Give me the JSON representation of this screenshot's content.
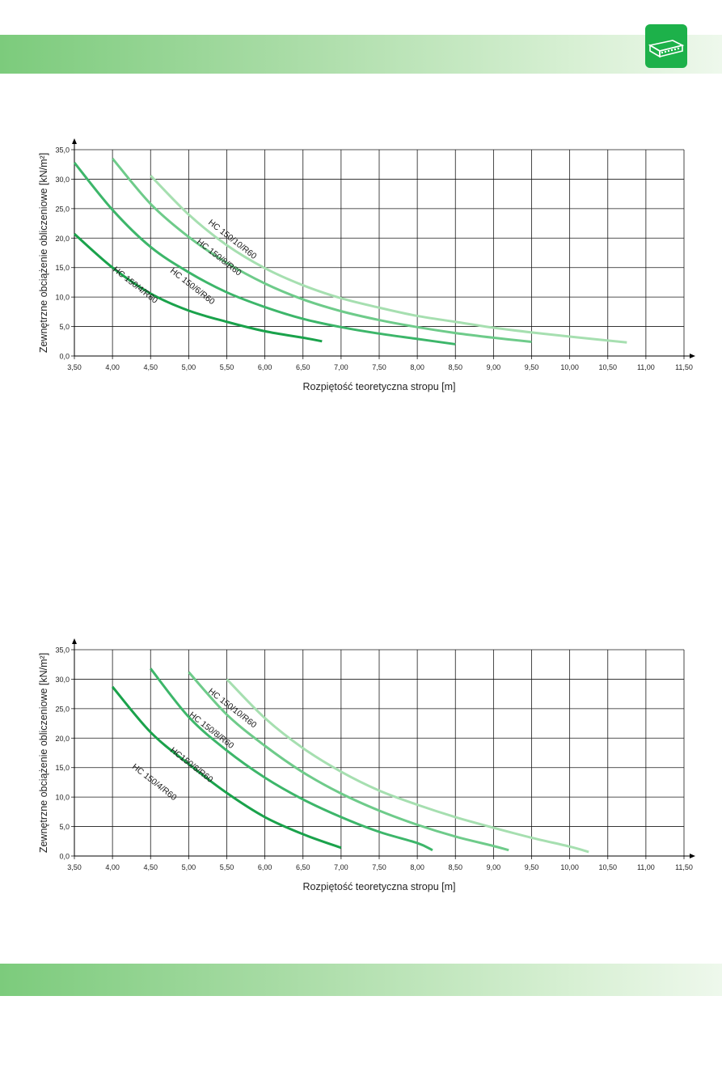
{
  "colors": {
    "band_start": "#7ccb7c",
    "band_end": "#eef8ec",
    "logo": "#1db14a",
    "series": [
      "#1aa24b",
      "#3db66a",
      "#6ecb8a",
      "#a6dfb0"
    ]
  },
  "icons": {
    "logo": "hollow-core-slab-icon"
  },
  "chart_data": [
    {
      "type": "line",
      "ylabel": "Zewnętrzne obciążenie obliczeniowe [kN/m²]",
      "xlabel": "Rozpiętość teoretyczna stropu [m]",
      "xlim": [
        3.5,
        11.5
      ],
      "ylim": [
        0,
        35
      ],
      "grid": true,
      "x_ticks": [
        "3,50",
        "4,00",
        "4,50",
        "5,00",
        "5,50",
        "6,00",
        "6,50",
        "7,00",
        "7,50",
        "8,00",
        "8,50",
        "9,00",
        "9,50",
        "10,00",
        "10,50",
        "11,00",
        "11,50"
      ],
      "y_ticks": [
        "0,0",
        "5,0",
        "10,0",
        "15,0",
        "20,0",
        "25,0",
        "30,0",
        "35,0"
      ],
      "series": [
        {
          "name": "HC 150/4/R60",
          "x": [
            3.5,
            4.0,
            4.5,
            5.0,
            5.5,
            6.0,
            6.5,
            6.75
          ],
          "y": [
            20.7,
            15.0,
            10.6,
            7.7,
            5.8,
            4.2,
            3.1,
            2.5
          ]
        },
        {
          "name": "HC 150/6/R60",
          "x": [
            3.5,
            4.0,
            4.5,
            5.0,
            5.5,
            6.0,
            6.5,
            7.0,
            7.5,
            8.0,
            8.5
          ],
          "y": [
            32.8,
            24.8,
            18.5,
            14.2,
            10.8,
            8.3,
            6.3,
            4.9,
            3.8,
            2.9,
            2.0
          ]
        },
        {
          "name": "HC 150/8/R60",
          "x": [
            4.0,
            4.5,
            5.0,
            5.5,
            6.0,
            6.5,
            7.0,
            7.5,
            8.0,
            8.5,
            9.0,
            9.5
          ],
          "y": [
            33.5,
            25.8,
            20.2,
            15.8,
            12.3,
            9.6,
            7.6,
            6.1,
            4.9,
            3.9,
            3.1,
            2.4
          ]
        },
        {
          "name": "HC 150/10/R60",
          "x": [
            4.5,
            5.0,
            5.5,
            6.0,
            6.5,
            7.0,
            7.5,
            8.0,
            8.5,
            9.0,
            9.5,
            10.0,
            10.75
          ],
          "y": [
            30.6,
            24.0,
            18.8,
            14.9,
            12.0,
            9.8,
            8.2,
            6.8,
            5.8,
            4.8,
            4.0,
            3.3,
            2.3
          ]
        }
      ]
    },
    {
      "type": "line",
      "ylabel": "Zewnętrzne obciążenie obliczeniowe [kN/m²]",
      "xlabel": "Rozpiętość teoretyczna stropu [m]",
      "xlim": [
        3.5,
        11.5
      ],
      "ylim": [
        0,
        35
      ],
      "grid": true,
      "x_ticks": [
        "3,50",
        "4,00",
        "4,50",
        "5,00",
        "5,50",
        "6,00",
        "6,50",
        "7,00",
        "7,50",
        "8,00",
        "8,50",
        "9,00",
        "9,50",
        "10,00",
        "10,50",
        "11,00",
        "11,50"
      ],
      "y_ticks": [
        "0,0",
        "5,0",
        "10,0",
        "15,0",
        "20,0",
        "25,0",
        "30,0",
        "35,0"
      ],
      "series": [
        {
          "name": "HC 150/4/R60",
          "x": [
            4.0,
            4.5,
            5.0,
            5.5,
            6.0,
            6.5,
            7.0
          ],
          "y": [
            28.7,
            21.0,
            15.6,
            10.7,
            6.6,
            3.7,
            1.4
          ]
        },
        {
          "name": "HC150/6/R60",
          "x": [
            4.5,
            5.0,
            5.5,
            6.0,
            6.5,
            7.0,
            7.5,
            8.0,
            8.2
          ],
          "y": [
            31.8,
            23.6,
            17.9,
            13.3,
            9.6,
            6.6,
            4.1,
            2.2,
            1.0
          ]
        },
        {
          "name": "HC 150/8/R60",
          "x": [
            5.0,
            5.5,
            6.0,
            6.5,
            7.0,
            7.5,
            8.0,
            8.5,
            9.0,
            9.2
          ],
          "y": [
            31.2,
            24.0,
            18.7,
            14.2,
            10.6,
            7.7,
            5.3,
            3.3,
            1.7,
            1.0
          ]
        },
        {
          "name": "HC 150/10/R60",
          "x": [
            5.5,
            6.0,
            6.5,
            7.0,
            7.5,
            8.0,
            8.5,
            9.0,
            9.5,
            10.0,
            10.25
          ],
          "y": [
            30.0,
            23.4,
            18.3,
            14.3,
            11.1,
            8.7,
            6.6,
            4.8,
            3.1,
            1.6,
            0.7
          ]
        }
      ]
    }
  ]
}
